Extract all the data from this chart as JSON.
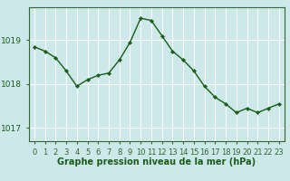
{
  "x": [
    0,
    1,
    2,
    3,
    4,
    5,
    6,
    7,
    8,
    9,
    10,
    11,
    12,
    13,
    14,
    15,
    16,
    17,
    18,
    19,
    20,
    21,
    22,
    23
  ],
  "y": [
    1018.85,
    1018.75,
    1018.6,
    1018.3,
    1017.95,
    1018.1,
    1018.2,
    1018.25,
    1018.55,
    1018.95,
    1019.5,
    1019.45,
    1019.1,
    1018.75,
    1018.55,
    1018.3,
    1017.95,
    1017.7,
    1017.55,
    1017.35,
    1017.45,
    1017.35,
    1017.45,
    1017.55
  ],
  "yticks": [
    1017,
    1018,
    1019
  ],
  "ylim": [
    1016.7,
    1019.75
  ],
  "xlim": [
    -0.5,
    23.5
  ],
  "line_color": "#1a5c1a",
  "marker": "D",
  "marker_size": 2.2,
  "line_width": 1.0,
  "bg_color": "#cce8e8",
  "grid_color": "#ffffff",
  "axis_color": "#336633",
  "tick_label_color": "#1a5c1a",
  "xlabel": "Graphe pression niveau de la mer (hPa)",
  "xlabel_fontsize": 7.0,
  "tick_fontsize": 6.0,
  "ytick_fontsize": 6.5,
  "xtick_labels": [
    "0",
    "1",
    "2",
    "3",
    "4",
    "5",
    "6",
    "7",
    "8",
    "9",
    "10",
    "11",
    "12",
    "13",
    "14",
    "15",
    "16",
    "17",
    "18",
    "19",
    "20",
    "21",
    "22",
    "23"
  ]
}
